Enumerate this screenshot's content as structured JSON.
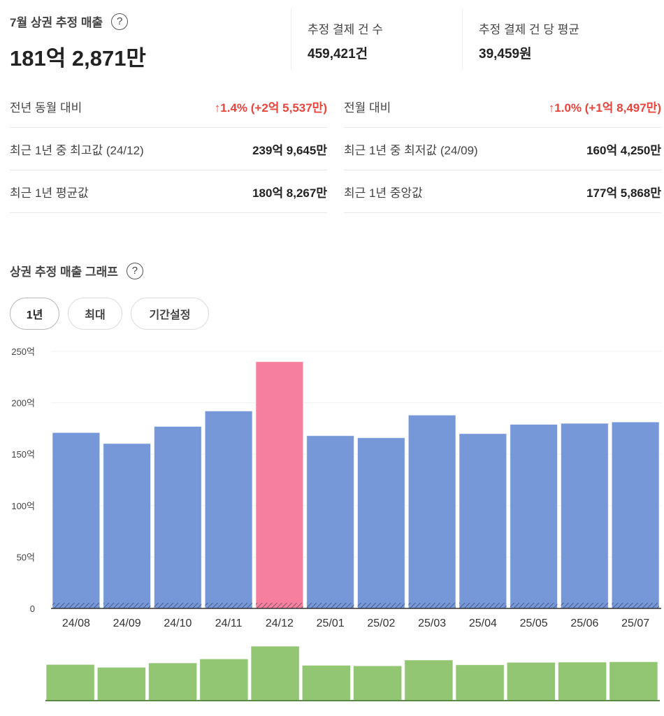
{
  "summary": {
    "title": "7월 상권 추정 매출",
    "help_icon": "?",
    "total": "181억 2,871만",
    "count_label": "추정 결제 건 수",
    "count_value": "459,421건",
    "avg_label": "추정 결제 건 당 평균",
    "avg_value": "39,459원"
  },
  "stats": {
    "left": [
      {
        "label": "전년 동월 대비",
        "value": "↑1.4% (+2억 5,537만)",
        "trend": "up"
      },
      {
        "label": "최근 1년 중 최고값 (24/12)",
        "value": "239억 9,645만"
      },
      {
        "label": "최근 1년 평균값",
        "value": "180억 8,267만"
      }
    ],
    "right": [
      {
        "label": "전월 대비",
        "value": "↑1.0% (+1억 8,497만)",
        "trend": "up"
      },
      {
        "label": "최근 1년 중 최저값 (24/09)",
        "value": "160억 4,250만"
      },
      {
        "label": "최근 1년 중앙값",
        "value": "177억 5,868만"
      }
    ]
  },
  "graph": {
    "title": "상권 추정 매출 그래프",
    "help_icon": "?",
    "tabs": [
      {
        "label": "1년",
        "active": true
      },
      {
        "label": "최대",
        "active": false
      },
      {
        "label": "기간설정",
        "active": false
      }
    ]
  },
  "colors": {
    "bar": "#7697d8",
    "highlight": "#f77f9e",
    "navigator": "#92c672",
    "up": "#e8453c"
  },
  "chart_data": {
    "type": "bar",
    "categories": [
      "24/08",
      "24/09",
      "24/10",
      "24/11",
      "24/12",
      "25/01",
      "25/02",
      "25/03",
      "25/04",
      "25/05",
      "25/06",
      "25/07"
    ],
    "values": [
      171,
      160.4,
      177,
      192,
      240,
      168,
      166,
      188,
      170,
      179,
      180,
      181.3
    ],
    "highlight_category": "24/12",
    "unit": "억",
    "ylim": [
      0,
      250
    ],
    "yticks": [
      "0",
      "50억",
      "100억",
      "150억",
      "200억",
      "250억"
    ],
    "ytick_values": [
      0,
      50,
      100,
      150,
      200,
      250
    ],
    "grid": true,
    "navigator": true
  }
}
